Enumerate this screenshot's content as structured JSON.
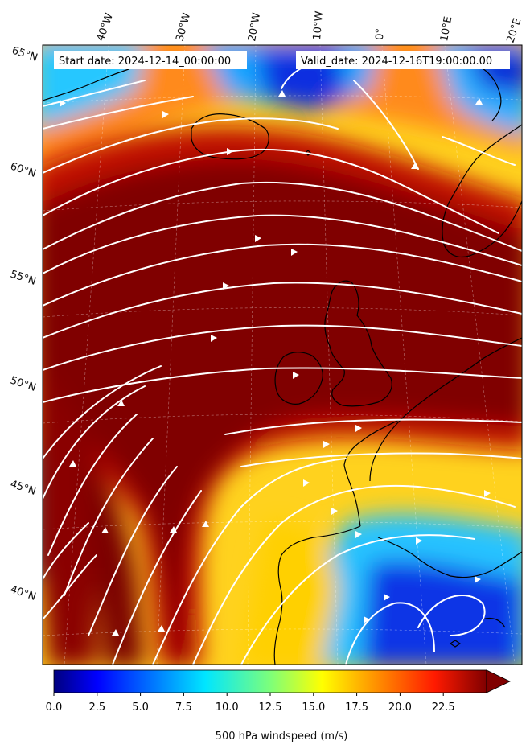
{
  "header": {
    "start_date": "Start date: 2024-12-14_00:00:00",
    "valid_date": "Valid_date: 2024-12-16T19:00:00.00"
  },
  "longitude_labels": [
    "40°W",
    "30°W",
    "20°W",
    "10°W",
    "0°",
    "10°E",
    "20°E"
  ],
  "latitude_labels": [
    "65°N",
    "60°N",
    "55°N",
    "50°N",
    "45°N",
    "40°N"
  ],
  "colorbar": {
    "label": "500 hPa windspeed (m/s)",
    "min": 0,
    "max": 25,
    "extend": "max",
    "colormap": "jet",
    "ticks": [
      "0.0",
      "2.5",
      "5.0",
      "7.5",
      "10.0",
      "12.5",
      "15.0",
      "17.5",
      "20.0",
      "22.5"
    ]
  },
  "colors": {
    "jet_core": "#800000",
    "strong": "#e41a00",
    "moderate": "#ffa500",
    "weak": "#35d0ff",
    "calm": "#0a2bd8",
    "streamline": "#ffffff",
    "coastline": "#000000"
  },
  "icons": {
    "streamlines": "streamline-arrows",
    "coastline": "coastline-outline"
  }
}
